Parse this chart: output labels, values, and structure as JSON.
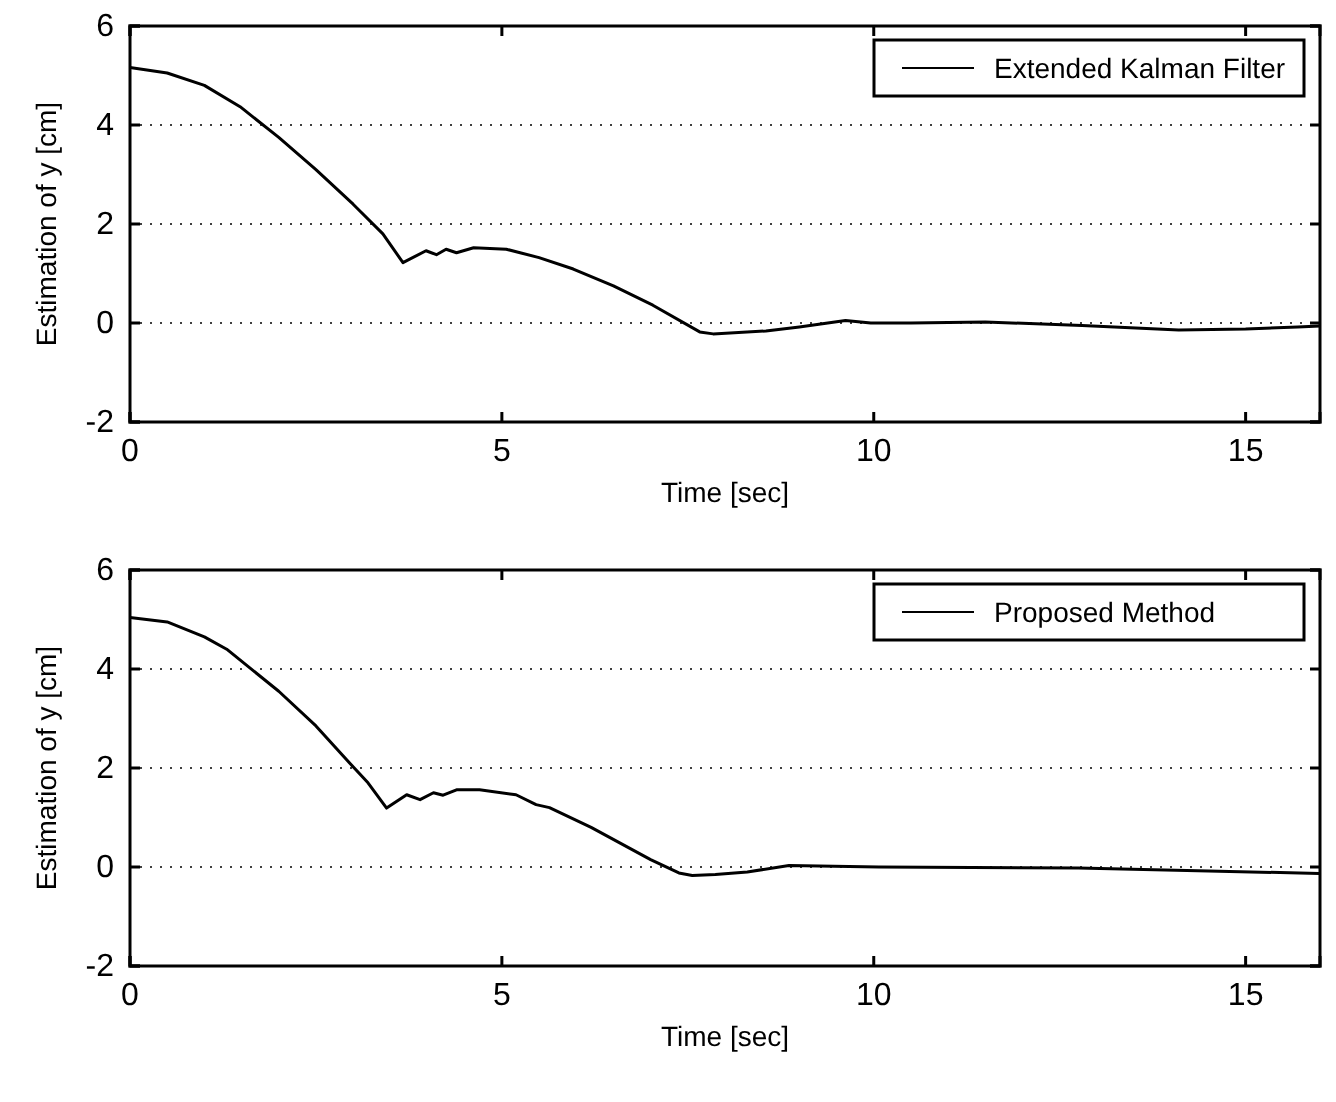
{
  "chart_data": [
    {
      "type": "line",
      "xlabel": "Time [sec]",
      "ylabel": "Estimation of y [cm]",
      "xlim": [
        0,
        16
      ],
      "ylim": [
        -2,
        6
      ],
      "xticks": [
        0,
        5,
        10,
        15
      ],
      "yticks": [
        -2,
        0,
        2,
        4,
        6
      ],
      "grid": "y",
      "legend": "top right",
      "line_style": "solid",
      "marker": "none",
      "series": [
        {
          "name": "Extended Kalman Filter",
          "color": "#000000",
          "x": [
            0,
            0.5,
            1,
            1.48,
            2,
            2.5,
            3,
            3.4,
            3.67,
            3.98,
            4.12,
            4.25,
            4.39,
            4.62,
            5.06,
            5.5,
            5.96,
            6.5,
            7.03,
            7.66,
            7.84,
            8.55,
            9.0,
            9.62,
            9.96,
            10.5,
            11.5,
            12.8,
            14.1,
            15.0,
            15.7,
            16
          ],
          "values": [
            5.16,
            5.05,
            4.8,
            4.37,
            3.75,
            3.1,
            2.4,
            1.8,
            1.22,
            1.46,
            1.38,
            1.49,
            1.42,
            1.52,
            1.49,
            1.32,
            1.09,
            0.75,
            0.36,
            -0.18,
            -0.22,
            -0.16,
            -0.08,
            0.05,
            0.0,
            0.0,
            0.02,
            -0.05,
            -0.14,
            -0.12,
            -0.08,
            -0.06
          ]
        }
      ]
    },
    {
      "type": "line",
      "xlabel": "Time [sec]",
      "ylabel": "Estimation of y [cm]",
      "xlim": [
        0,
        16
      ],
      "ylim": [
        -2,
        6
      ],
      "xticks": [
        0,
        5,
        10,
        15
      ],
      "yticks": [
        -2,
        0,
        2,
        4,
        6
      ],
      "grid": "y",
      "legend": "top right",
      "line_style": "solid",
      "marker": "none",
      "series": [
        {
          "name": "Proposed Method",
          "color": "#000000",
          "x": [
            0,
            0.5,
            1,
            1.3,
            2,
            2.5,
            2.91,
            3.2,
            3.45,
            3.72,
            3.9,
            4.08,
            4.21,
            4.39,
            4.7,
            5.19,
            5.46,
            5.64,
            6.2,
            7.0,
            7.38,
            7.56,
            7.87,
            8.3,
            8.86,
            10.07,
            12.75,
            14.5,
            15.99
          ],
          "values": [
            5.04,
            4.95,
            4.65,
            4.4,
            3.55,
            2.85,
            2.17,
            1.7,
            1.19,
            1.46,
            1.36,
            1.5,
            1.45,
            1.56,
            1.56,
            1.46,
            1.26,
            1.2,
            0.8,
            0.15,
            -0.12,
            -0.17,
            -0.15,
            -0.1,
            0.03,
            0.0,
            -0.02,
            -0.08,
            -0.13
          ]
        }
      ]
    }
  ]
}
